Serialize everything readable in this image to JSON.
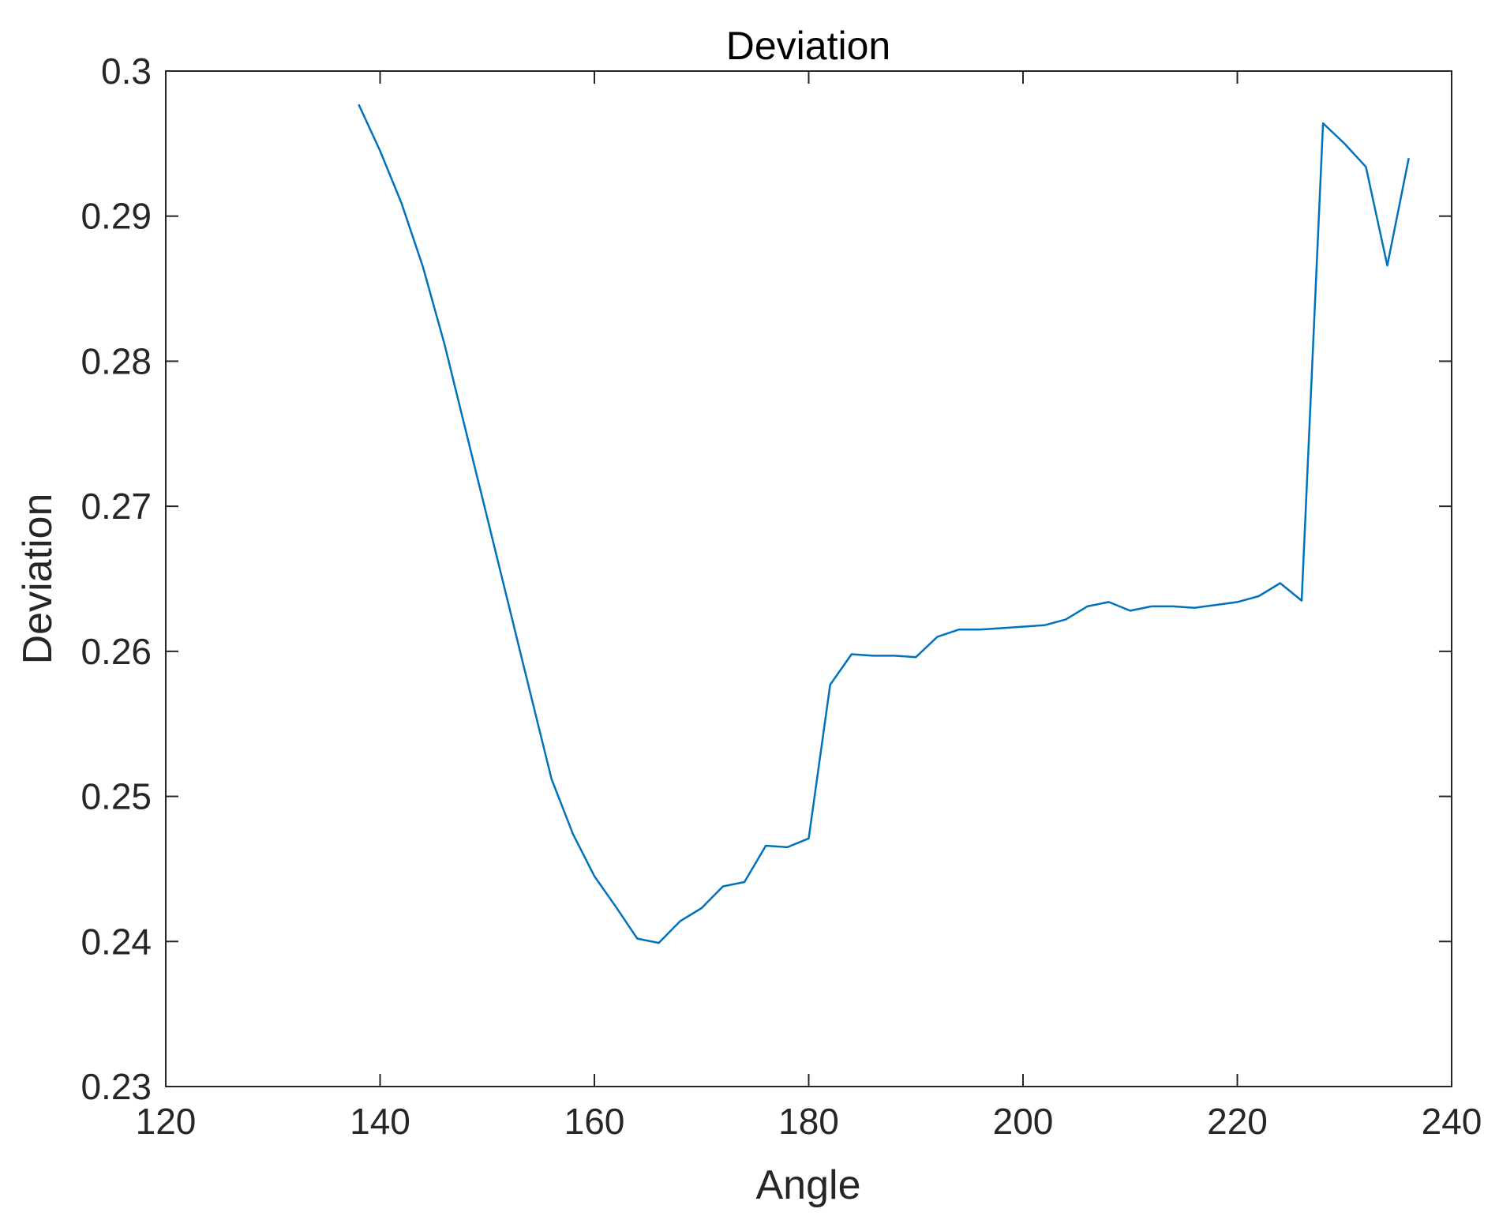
{
  "chart_data": {
    "type": "line",
    "title": "Deviation",
    "xlabel": "Angle",
    "ylabel": "Deviation",
    "xlim": [
      120,
      240
    ],
    "ylim": [
      0.23,
      0.3
    ],
    "xticks": [
      "120",
      "140",
      "160",
      "180",
      "200",
      "220",
      "240"
    ],
    "yticks": [
      "0.23",
      "0.24",
      "0.25",
      "0.26",
      "0.27",
      "0.28",
      "0.29",
      "0.3"
    ],
    "grid": false,
    "line_color": "#0072BD",
    "series": [
      {
        "x": [
          138,
          140,
          142,
          144,
          146,
          148,
          150,
          152,
          154,
          156,
          158,
          160,
          162,
          164,
          166,
          168,
          170,
          172,
          174,
          176,
          178,
          180,
          182,
          184,
          186,
          188,
          190,
          192,
          194,
          196,
          198,
          200,
          202,
          204,
          206,
          208,
          210,
          212,
          214,
          216,
          218,
          220,
          222,
          224,
          226,
          228,
          230,
          232,
          234,
          236
        ],
        "y": [
          0.2977,
          0.2945,
          0.2909,
          0.2865,
          0.2812,
          0.2752,
          0.2692,
          0.2632,
          0.2572,
          0.2512,
          0.2474,
          0.2445,
          0.2424,
          0.2402,
          0.2399,
          0.2414,
          0.2423,
          0.2438,
          0.2441,
          0.2466,
          0.2465,
          0.2471,
          0.2577,
          0.2598,
          0.2597,
          0.2597,
          0.2596,
          0.261,
          0.2615,
          0.2615,
          0.2616,
          0.2617,
          0.2618,
          0.2622,
          0.2631,
          0.2634,
          0.2628,
          0.2631,
          0.2631,
          0.263,
          0.2632,
          0.2634,
          0.2638,
          0.2647,
          0.2635,
          0.2964,
          0.295,
          0.2934,
          0.2866,
          0.294
        ]
      }
    ]
  }
}
